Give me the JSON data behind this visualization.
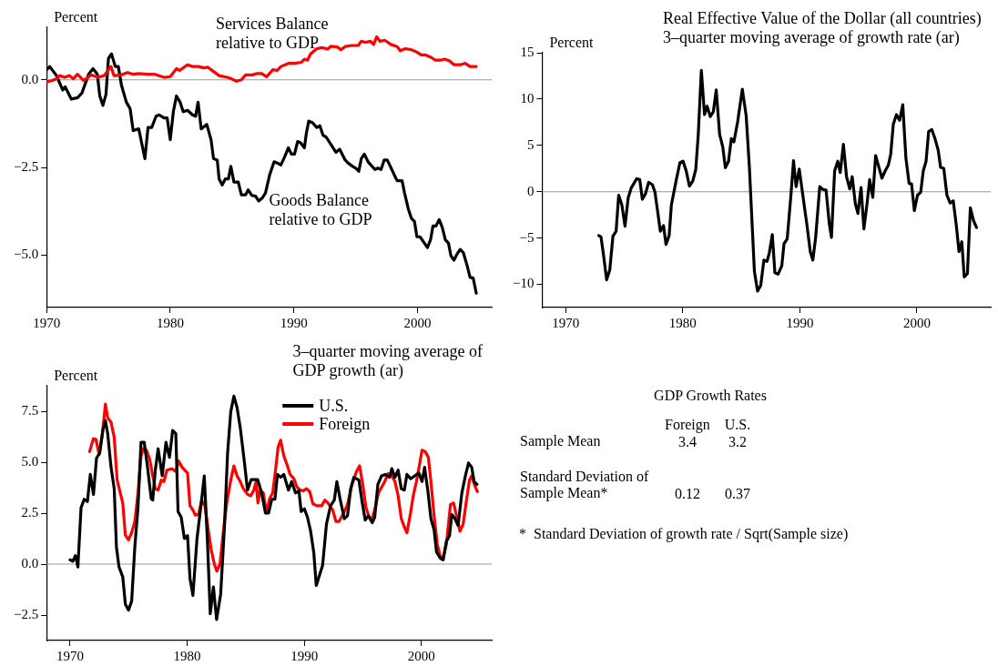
{
  "chart_data": [
    {
      "type": "line",
      "ylabel": "Percent",
      "xlim": [
        1970,
        2006
      ],
      "xticks": [
        1970,
        1980,
        1990,
        2000
      ],
      "ylim": [
        -6.5,
        1.5
      ],
      "yticks": [
        {
          "value": -5,
          "label": "−5.0"
        },
        {
          "value": -2.5,
          "label": "−2.5"
        },
        {
          "value": 0,
          "label": "0.0"
        }
      ],
      "legend": false,
      "ref_lines": [
        {
          "axis": "y",
          "value": 0,
          "color": "#999999"
        }
      ],
      "series": [
        {
          "name": "Services Balance relative to GDP",
          "color": "#ff0000",
          "x": [
            1970,
            1970.45,
            1970.8,
            1971.05,
            1971.45,
            1971.85,
            1972.15,
            1972.5,
            1973,
            1973.6,
            1974.15,
            1974.65,
            1975.2,
            1975.45,
            1976.05,
            1976.55,
            1976.95,
            1977.45,
            1978.2,
            1978.7,
            1979.5,
            1980,
            1980.5,
            1980.75,
            1981.4,
            1981.8,
            1982.3,
            1982.7,
            1983.05,
            1983.45,
            1983.95,
            1984.6,
            1984.95,
            1985.35,
            1985.75,
            1986.1,
            1986.65,
            1987,
            1987.4,
            1987.8,
            1988.3,
            1988.65,
            1988.95,
            1989.55,
            1990.05,
            1990.6,
            1990.85,
            1991.1,
            1991.35,
            1991.85,
            1992.25,
            1992.75,
            1993,
            1993.5,
            1993.8,
            1994.15,
            1994.65,
            1995.2,
            1995.45,
            1995.8,
            1996.2,
            1996.45,
            1996.7,
            1996.95,
            1997.35,
            1997.85,
            1998.35,
            1998.6,
            1999,
            1999.5,
            1999.9,
            2000.3,
            2000.65,
            2001.05,
            2001.45,
            2001.8,
            2002.2,
            2002.6,
            2002.95,
            2003.45,
            2003.85,
            2004.25,
            2004.75
          ],
          "values": [
            -0.06,
            -0.02,
            0.03,
            0.12,
            0.07,
            0.12,
            0.03,
            0.16,
            -0.02,
            0.14,
            0.07,
            0.12,
            0.38,
            0.12,
            0.14,
            0.21,
            0.16,
            0.18,
            0.16,
            0.16,
            0.07,
            0.09,
            0.32,
            0.27,
            0.43,
            0.38,
            0.38,
            0.34,
            0.36,
            0.25,
            0.12,
            0.07,
            0.03,
            -0.04,
            0,
            0.14,
            0.14,
            0.18,
            0.18,
            0.09,
            0.29,
            0.27,
            0.38,
            0.47,
            0.47,
            0.5,
            0.59,
            0.56,
            0.74,
            0.89,
            0.92,
            0.88,
            0.96,
            0.94,
            0.86,
            0.95,
            0.98,
            0.98,
            1.1,
            1.07,
            1.1,
            1.01,
            1.23,
            1.1,
            1.13,
            1.01,
            0.95,
            0.83,
            0.89,
            0.86,
            0.8,
            0.71,
            0.71,
            0.65,
            0.56,
            0.56,
            0.59,
            0.54,
            0.43,
            0.43,
            0.47,
            0.38,
            0.38
          ]
        },
        {
          "name": "Goods Balance relative to GDP",
          "color": "#000000",
          "x": [
            1970,
            1970.25,
            1970.8,
            1971.3,
            1971.5,
            1972,
            1972.5,
            1972.85,
            1973.4,
            1973.75,
            1974.1,
            1974.3,
            1974.55,
            1974.8,
            1975,
            1975.25,
            1975.55,
            1975.8,
            1976.05,
            1976.45,
            1976.75,
            1977,
            1977.45,
            1977.95,
            1978.2,
            1978.5,
            1978.85,
            1979.1,
            1979.5,
            1979.75,
            1980,
            1980.25,
            1980.5,
            1980.8,
            1981.05,
            1981.4,
            1981.8,
            1982.05,
            1982.25,
            1982.5,
            1982.95,
            1983.3,
            1983.5,
            1983.8,
            1983.95,
            1984.2,
            1984.45,
            1984.7,
            1984.9,
            1985.15,
            1985.5,
            1985.75,
            1986.1,
            1986.3,
            1986.6,
            1986.9,
            1987.15,
            1987.45,
            1987.7,
            1988.05,
            1988.4,
            1988.7,
            1988.95,
            1989.3,
            1989.55,
            1989.8,
            1990.05,
            1990.3,
            1990.55,
            1990.85,
            1991,
            1991.2,
            1991.5,
            1991.85,
            1992.1,
            1992.35,
            1992.6,
            1993,
            1993.4,
            1993.7,
            1994.15,
            1994.4,
            1994.75,
            1995,
            1995.25,
            1995.45,
            1995.7,
            1996,
            1996.55,
            1996.8,
            1997.05,
            1997.3,
            1997.55,
            1997.8,
            1998.1,
            1998.35,
            1998.75,
            1998.95,
            1999.25,
            1999.5,
            1999.75,
            1999.95,
            2000.2,
            2000.55,
            2000.8,
            2001.05,
            2001.25,
            2001.5,
            2001.75,
            2002,
            2002.25,
            2002.5,
            2002.7,
            2002.95,
            2003.2,
            2003.45,
            2003.7,
            2004,
            2004.25,
            2004.5,
            2004.75
          ],
          "values": [
            0.29,
            0.38,
            0.12,
            -0.29,
            -0.2,
            -0.55,
            -0.51,
            -0.38,
            0.16,
            0.32,
            0.16,
            -0.46,
            -0.73,
            -0.42,
            0.61,
            0.74,
            0.38,
            0.38,
            -0.15,
            -0.64,
            -0.82,
            -1.45,
            -1.4,
            -2.25,
            -1.36,
            -1.36,
            -1.04,
            -1,
            -1.09,
            -1.09,
            -1.71,
            -0.91,
            -0.46,
            -0.64,
            -0.91,
            -0.87,
            -1,
            -1.04,
            -0.64,
            -1.4,
            -1.27,
            -1.71,
            -2.25,
            -2.29,
            -2.83,
            -3,
            -2.83,
            -2.83,
            -2.47,
            -2.92,
            -2.92,
            -3.28,
            -3.28,
            -3.14,
            -3.3,
            -3.32,
            -3.46,
            -3.37,
            -3.23,
            -2.7,
            -2.34,
            -2.38,
            -2.43,
            -2.16,
            -1.94,
            -2.12,
            -2.12,
            -1.76,
            -1.8,
            -1.94,
            -1.54,
            -1.18,
            -1.22,
            -1.36,
            -1.31,
            -1.58,
            -1.63,
            -1.85,
            -2.07,
            -1.98,
            -2.29,
            -2.38,
            -2.47,
            -2.52,
            -2.61,
            -2.25,
            -2.12,
            -2.34,
            -2.56,
            -2.52,
            -2.56,
            -2.29,
            -2.29,
            -2.47,
            -2.7,
            -2.88,
            -2.88,
            -3.23,
            -3.68,
            -3.95,
            -4.04,
            -4.48,
            -4.48,
            -4.66,
            -4.79,
            -4.57,
            -4.17,
            -4.17,
            -3.99,
            -4.21,
            -4.57,
            -4.66,
            -5.02,
            -5.15,
            -4.97,
            -4.84,
            -4.93,
            -5.29,
            -5.64,
            -5.66,
            -6.09
          ]
        }
      ]
    },
    {
      "type": "line",
      "title": "Real Effective Value of the Dollar (all countries)",
      "subtitle": "3–quarter moving average of growth rate (ar)",
      "ylabel": "Percent",
      "xlim": [
        1968,
        2006.3
      ],
      "xticks": [
        1970,
        1980,
        1990,
        2000
      ],
      "ylim": [
        -12.5,
        15
      ],
      "yticks": [
        {
          "value": -10,
          "label": "−10"
        },
        {
          "value": -5,
          "label": "−5"
        },
        0,
        5,
        10,
        15
      ],
      "legend": false,
      "ref_lines": [
        {
          "axis": "y",
          "value": 0,
          "color": "#999999"
        }
      ],
      "series": [
        {
          "color": "#000000",
          "x": [
            1972.83,
            1973.02,
            1973.23,
            1973.5,
            1973.77,
            1974.04,
            1974.31,
            1974.53,
            1974.8,
            1975.07,
            1975.34,
            1975.6,
            1976.06,
            1976.33,
            1976.55,
            1976.82,
            1977.09,
            1977.41,
            1977.63,
            1978.09,
            1978.36,
            1978.57,
            1978.84,
            1979.03,
            1979.43,
            1979.76,
            1980.03,
            1980.3,
            1980.57,
            1980.86,
            1981.11,
            1981.32,
            1981.59,
            1981.86,
            1982.08,
            1982.35,
            1982.61,
            1982.86,
            1983.15,
            1983.42,
            1983.64,
            1983.91,
            1984.15,
            1984.37,
            1984.69,
            1985.09,
            1985.42,
            1985.69,
            1986.12,
            1986.39,
            1986.66,
            1986.93,
            1987.2,
            1987.39,
            1987.65,
            1987.87,
            1988.14,
            1988.46,
            1988.65,
            1988.92,
            1989.22,
            1989.46,
            1989.68,
            1989.95,
            1990.22,
            1990.62,
            1990.89,
            1991.11,
            1991.35,
            1991.7,
            1991.97,
            1992.24,
            1992.51,
            1992.7,
            1992.97,
            1993.24,
            1993.45,
            1993.72,
            1993.99,
            1994.26,
            1994.47,
            1994.74,
            1994.96,
            1995.23,
            1995.47,
            1995.74,
            1995.96,
            1996.23,
            1996.47,
            1996.74,
            1997.01,
            1997.28,
            1997.55,
            1997.76,
            1997.98,
            1998.25,
            1998.52,
            1998.79,
            1999.06,
            1999.33,
            1999.54,
            1999.78,
            2000.05,
            2000.32,
            2000.54,
            2000.78,
            2001,
            2001.27,
            2001.54,
            2001.81,
            2002.02,
            2002.29,
            2002.56,
            2002.83,
            2003.1,
            2003.37,
            2003.59,
            2003.83,
            2004.04,
            2004.31,
            2004.56,
            2004.83,
            2005.09
          ],
          "values": [
            -4.73,
            -4.88,
            -6.77,
            -9.51,
            -8.45,
            -4.79,
            -4.27,
            -0.37,
            -1.43,
            -3.72,
            -0.67,
            0.4,
            1.4,
            1.31,
            -0.82,
            -0.21,
            1.01,
            0.76,
            -0.06,
            -4.27,
            -3.66,
            -5.7,
            -4.73,
            -1.43,
            1.16,
            3.14,
            3.29,
            2.23,
            0.61,
            1.16,
            2.38,
            6.04,
            13.11,
            8.32,
            9.24,
            8.11,
            8.63,
            10.98,
            6.19,
            4.82,
            2.59,
            3.29,
            5.73,
            5.37,
            7.56,
            11.07,
            8.17,
            2.68,
            -8.6,
            -10.73,
            -10.12,
            -7.38,
            -7.53,
            -6.62,
            -4.63,
            -8.75,
            -8.9,
            -7.99,
            -5.61,
            -5.09,
            -0.67,
            3.35,
            0.55,
            2.44,
            -0.06,
            -3.72,
            -6.46,
            -7.38,
            -4.94,
            0.55,
            0.24,
            0.18,
            -3.41,
            -4.94,
            2.23,
            3.29,
            2.07,
            5.12,
            1.62,
            0.3,
            1.62,
            -1.28,
            -2.35,
            0.46,
            -4.02,
            -1.28,
            1.31,
            -0.61,
            3.9,
            2.68,
            1.46,
            2.23,
            2.84,
            4.05,
            7.26,
            8.32,
            7.71,
            9.39,
            3.6,
            0.91,
            0.85,
            -2.04,
            -0.37,
            -0.06,
            2.23,
            3.29,
            6.49,
            6.71,
            5.73,
            4.51,
            2.62,
            2.53,
            -0.37,
            -1.22,
            -0.98,
            -3.72,
            -6.46,
            -5.4,
            -9.2,
            -8.84,
            -1.74,
            -3.11,
            -3.87
          ]
        }
      ]
    },
    {
      "type": "line",
      "title": "3–quarter moving average of GDP growth (ar)",
      "ylabel": "Percent",
      "xlim": [
        1968,
        2006
      ],
      "xticks": [
        1970,
        1980,
        1990,
        2000
      ],
      "ylim": [
        -3.75,
        8.75
      ],
      "yticks": [
        {
          "value": -2.5,
          "label": "−2.5"
        },
        {
          "value": 0,
          "label": "0.0"
        },
        {
          "value": 2.5,
          "label": "2.5"
        },
        {
          "value": 5,
          "label": "5.0"
        },
        {
          "value": 7.5,
          "label": "7.5"
        }
      ],
      "legend": "top right",
      "ref_lines": [
        {
          "axis": "y",
          "value": 0,
          "color": "#999999"
        }
      ],
      "series": [
        {
          "name": "U.S.",
          "color": "#000000",
          "x": [
            1970,
            1970.24,
            1970.46,
            1970.67,
            1970.94,
            1971.21,
            1971.48,
            1971.73,
            1972,
            1972.26,
            1972.53,
            1972.8,
            1973.02,
            1973.21,
            1973.5,
            1973.77,
            1973.96,
            1974.18,
            1974.5,
            1974.72,
            1974.99,
            1975.26,
            1975.53,
            1975.8,
            1976.06,
            1976.33,
            1976.6,
            1976.93,
            1977.06,
            1977.28,
            1977.52,
            1977.87,
            1978.19,
            1978.49,
            1978.76,
            1979.03,
            1979.22,
            1979.49,
            1979.76,
            1980.03,
            1980.24,
            1980.49,
            1980.84,
            1981.19,
            1981.46,
            1981.73,
            1981.97,
            1982.24,
            1982.51,
            1982.86,
            1983.18,
            1983.45,
            1983.72,
            1983.99,
            1984.26,
            1984.53,
            1984.88,
            1985.15,
            1985.47,
            1985.74,
            1986.01,
            1986.36,
            1986.68,
            1986.95,
            1987.22,
            1987.49,
            1987.71,
            1987.98,
            1988.25,
            1988.65,
            1988.92,
            1989.25,
            1989.54,
            1989.73,
            1990,
            1990.27,
            1990.54,
            1990.81,
            1991.02,
            1991.29,
            1991.56,
            1991.89,
            1992.24,
            1992.56,
            1992.78,
            1993.05,
            1993.42,
            1993.69,
            1993.96,
            1994.23,
            1994.66,
            1994.93,
            1995.2,
            1995.47,
            1995.8,
            1996.01,
            1996.28,
            1996.6,
            1996.93,
            1997.28,
            1997.47,
            1997.74,
            1998.01,
            1998.28,
            1998.54,
            1998.76,
            1999.08,
            1999.43,
            1999.78,
            2000.05,
            2000.27,
            2000.54,
            2000.81,
            2001.08,
            2001.29,
            2001.62,
            2001.86,
            2002.13,
            2002.4,
            2002.59,
            2002.86,
            2003.13,
            2003.45,
            2003.75,
            2004.02,
            2004.29,
            2004.5,
            2004.74
          ],
          "values": [
            0.21,
            0.14,
            0.42,
            -0.14,
            2.77,
            3.18,
            3.07,
            4.4,
            3.42,
            5.2,
            5.45,
            6.56,
            7.05,
            6.42,
            4.75,
            3.7,
            0.84,
            -0.14,
            -0.63,
            -1.96,
            -2.26,
            -1.82,
            0.84,
            2.79,
            5.98,
            5.98,
            4.82,
            3.21,
            3.14,
            4.61,
            5.66,
            4.33,
            5.98,
            5.24,
            6.56,
            6.4,
            2.58,
            2.3,
            1.26,
            1.4,
            -0.7,
            -1.54,
            1.26,
            2.93,
            4.33,
            1.12,
            -2.44,
            -1.12,
            -2.72,
            -1.47,
            1.82,
            5.45,
            7.47,
            8.24,
            7.68,
            6.7,
            5.03,
            3.63,
            4.15,
            4.15,
            4.15,
            3.49,
            2.51,
            2.51,
            3.18,
            3.18,
            4.4,
            4.26,
            4.4,
            3.63,
            4.05,
            3.49,
            3.6,
            2.58,
            2.72,
            2.3,
            1.61,
            0.56,
            -1.05,
            -0.56,
            -0.07,
            1.96,
            2.86,
            3.14,
            4.05,
            3.21,
            2.23,
            2.37,
            3.7,
            4.26,
            4.12,
            3.07,
            2.16,
            2.37,
            2.03,
            2.3,
            3.91,
            4.33,
            4.4,
            4.26,
            4.68,
            4.26,
            4.61,
            3.7,
            3.63,
            4.4,
            4.19,
            4.33,
            4.47,
            4.05,
            4.75,
            3.63,
            2.23,
            1.68,
            0.59,
            0.28,
            0.21,
            1.12,
            1.4,
            2.44,
            2.23,
            1.89,
            3.49,
            4.33,
            4.96,
            4.75,
            4.05,
            3.91
          ]
        },
        {
          "name": "Foreign",
          "color": "#ff0000",
          "x": [
            1971.67,
            1971.99,
            1972.21,
            1972.48,
            1972.75,
            1973.02,
            1973.21,
            1973.5,
            1973.77,
            1974.02,
            1974.29,
            1974.5,
            1974.72,
            1974.99,
            1975.26,
            1975.53,
            1975.8,
            1976.06,
            1976.25,
            1976.52,
            1976.79,
            1977.06,
            1977.28,
            1977.52,
            1977.79,
            1978.01,
            1978.27,
            1978.68,
            1979.03,
            1979.27,
            1979.57,
            1979.84,
            1980.03,
            1980.24,
            1980.49,
            1980.7,
            1980.97,
            1981.24,
            1981.51,
            1981.78,
            1982.05,
            1982.32,
            1982.53,
            1982.8,
            1983.13,
            1983.4,
            1983.72,
            1983.99,
            1984.26,
            1984.53,
            1984.8,
            1985.15,
            1985.42,
            1985.69,
            1985.88,
            1986.04,
            1986.23,
            1986.5,
            1986.77,
            1987.04,
            1987.3,
            1987.57,
            1987.76,
            1987.98,
            1988.25,
            1988.52,
            1988.79,
            1989.11,
            1989.38,
            1989.65,
            1989.92,
            1990.19,
            1990.46,
            1990.73,
            1991.08,
            1991.48,
            1991.75,
            1992.02,
            1992.43,
            1992.7,
            1992.96,
            1993.37,
            1993.69,
            1994.04,
            1994.45,
            1994.72,
            1994.99,
            1995.26,
            1995.53,
            1995.8,
            1996.06,
            1996.33,
            1996.6,
            1996.87,
            1997.14,
            1997.41,
            1997.74,
            1998.01,
            1998.28,
            1998.54,
            1998.76,
            1999.03,
            1999.3,
            1999.57,
            1999.84,
            2000.05,
            2000.32,
            2000.59,
            2000.81,
            2001.08,
            2001.35,
            2001.62,
            2001.86,
            2002.13,
            2002.48,
            2002.75,
            2003.02,
            2003.29,
            2003.56,
            2003.83,
            2004.1,
            2004.29,
            2004.56,
            2004.77
          ],
          "values": [
            5.52,
            6.15,
            6.12,
            5.38,
            6.35,
            7.85,
            7.19,
            6.96,
            6.22,
            4.12,
            3.49,
            3,
            1.42,
            1.19,
            1.54,
            2.09,
            3.49,
            5.31,
            5.66,
            5.59,
            5.17,
            4.33,
            3.7,
            3.63,
            4.12,
            4.05,
            4.61,
            4.68,
            4.54,
            5.06,
            4.75,
            4.58,
            4.47,
            2.86,
            2.65,
            2.4,
            2.44,
            3.14,
            2.86,
            1.75,
            0.7,
            0,
            -0.35,
            0,
            1.82,
            3.07,
            4.12,
            4.82,
            4.33,
            4.05,
            3.7,
            3.42,
            3.35,
            3.63,
            4.05,
            3,
            3.63,
            3.49,
            2.51,
            3.21,
            3.49,
            4.75,
            5.73,
            6.08,
            5.31,
            4.89,
            4.4,
            4.19,
            3.77,
            3.63,
            3.6,
            3.7,
            3.56,
            2.96,
            2.86,
            2.86,
            3.14,
            3,
            2.65,
            2.09,
            2.09,
            2.51,
            2.93,
            3.84,
            4.54,
            4.82,
            3.91,
            2.79,
            2.3,
            2.23,
            2.79,
            3.49,
            3.77,
            4.05,
            4.44,
            4.4,
            4.05,
            3.35,
            2.23,
            1.82,
            1.54,
            2.37,
            3.35,
            4.05,
            4.89,
            5.59,
            5.52,
            5.24,
            4.05,
            2.37,
            0.98,
            0.35,
            0.35,
            0.98,
            2.93,
            3,
            2.3,
            1.61,
            1.96,
            3.07,
            4.12,
            4.33,
            3.84,
            3.56
          ]
        }
      ]
    },
    {
      "type": "other",
      "title": "GDP Growth Rates",
      "data_labels": true,
      "categories": [
        "Foreign",
        "U.S."
      ],
      "series": [
        {
          "name": "Sample Mean",
          "values": [
            3.4,
            3.2
          ]
        },
        {
          "name": "Standard Deviation of Sample Mean*",
          "values": [
            0.12,
            0.37
          ]
        }
      ],
      "annotations": [
        "*  Standard Deviation of growth rate / Sqrt(Sample size)"
      ]
    }
  ]
}
